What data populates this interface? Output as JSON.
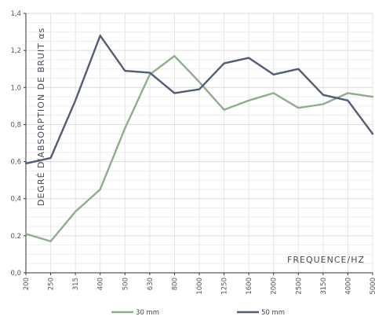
{
  "chart_data": {
    "type": "line",
    "xlabel": "FREQUENCE/HZ",
    "ylabel": "DEGRÉ D'ABSORPTION DE BRUIT αs",
    "ylim": [
      0,
      1.4
    ],
    "yticks": [
      "0,0",
      "0,2",
      "0,4",
      "0,6",
      "0,8",
      "1,0",
      "1,2",
      "1,4"
    ],
    "ytick_values": [
      0,
      0.2,
      0.4,
      0.6,
      0.8,
      1.0,
      1.2,
      1.4
    ],
    "categories": [
      "200",
      "250",
      "315",
      "400",
      "500",
      "630",
      "800",
      "1000",
      "1250",
      "1600",
      "2000",
      "2500",
      "3150",
      "4000",
      "5000"
    ],
    "grid": true,
    "legend_placement": "bottom-center",
    "series": [
      {
        "name": "30 mm",
        "color": "#8fac8c",
        "values": [
          0.21,
          0.17,
          0.33,
          0.45,
          0.78,
          1.07,
          1.17,
          1.03,
          0.88,
          0.93,
          0.97,
          0.89,
          0.91,
          0.97,
          0.95
        ]
      },
      {
        "name": "50 mm",
        "color": "#535c77",
        "values": [
          0.59,
          0.62,
          0.93,
          1.28,
          1.09,
          1.08,
          0.97,
          0.99,
          1.13,
          1.16,
          1.07,
          1.1,
          0.96,
          0.93,
          0.75
        ]
      }
    ]
  }
}
